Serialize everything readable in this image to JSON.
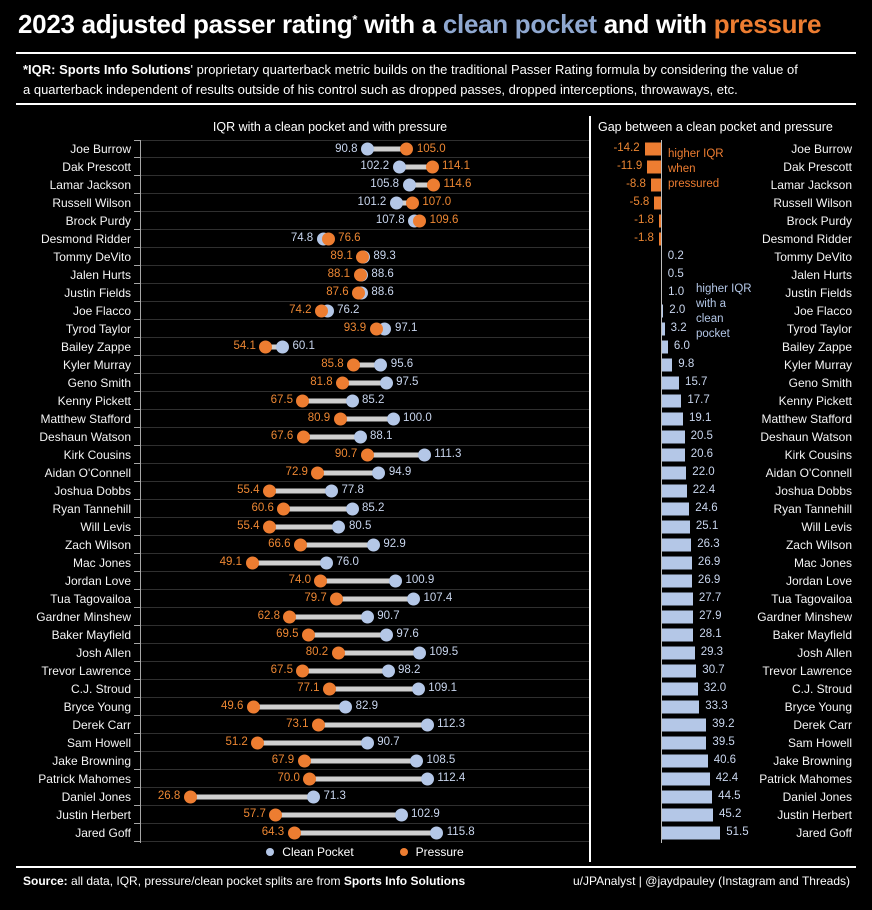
{
  "header": {
    "title_main": "2023 adjusted passer rating",
    "title_asterisk": "*",
    "title_mid": " with a ",
    "title_clean": "clean pocket",
    "title_and": " and with ",
    "title_pressure": "pressure",
    "subtitle_bold": "*IQR: Sports Info Solutions",
    "subtitle_line1_rest": "' proprietary quarterback metric builds on the traditional Passer Rating formula by considering the value of",
    "subtitle_line2": "a quarterback independent of results outside of his control such as dropped passes, dropped interceptions, throwaways, etc."
  },
  "left_panel": {
    "title": "IQR with a clean pocket and with pressure"
  },
  "right_panel": {
    "title": "Gap between a clean pocket  and pressure",
    "annotation_pressure": "higher IQR\nwhen\npressured",
    "annotation_clean": "higher IQR\nwith a\nclean\npocket"
  },
  "legend": {
    "clean": "Clean Pocket",
    "pressure": "Pressure"
  },
  "footer": {
    "source_bold": "Source:",
    "source_mid": " all data, IQR, pressure/clean pocket splits are from ",
    "source_bold2": "Sports Info Solutions",
    "credit": "u/JPAnalyst  |  @jaydpauley (Instagram and Threads)"
  },
  "colors": {
    "background": "#000000",
    "clean_blue": "#B4C7E7",
    "pressure_orange": "#ED7D31",
    "title_blue": "#8FA8D0",
    "connector_gray": "#CFCFCF",
    "clean_label": "#C9D6EE",
    "pressure_label": "#ED8733"
  },
  "chart_data": {
    "type": "dumbbell+bar",
    "left_chart": {
      "type": "dumbbell",
      "title": "IQR with a clean pocket and with pressure",
      "series": [
        "Clean Pocket",
        "Pressure"
      ],
      "xlim": [
        0,
        140
      ],
      "grid": "row-dividers"
    },
    "right_chart": {
      "type": "bar",
      "title": "Gap between a clean pocket  and pressure",
      "value_definition": "clean pocket IQR minus pressure IQR",
      "negative_note": "higher IQR when pressured",
      "positive_note": "higher IQR with a clean pocket"
    },
    "players": [
      {
        "name": "Joe Burrow",
        "clean": 90.8,
        "pressure": 105.0,
        "gap": -14.2
      },
      {
        "name": "Dak Prescott",
        "clean": 102.2,
        "pressure": 114.1,
        "gap": -11.9
      },
      {
        "name": "Lamar Jackson",
        "clean": 105.8,
        "pressure": 114.6,
        "gap": -8.8
      },
      {
        "name": "Russell Wilson",
        "clean": 101.2,
        "pressure": 107.0,
        "gap": -5.8
      },
      {
        "name": "Brock Purdy",
        "clean": 107.8,
        "pressure": 109.6,
        "gap": -1.8
      },
      {
        "name": "Desmond Ridder",
        "clean": 74.8,
        "pressure": 76.6,
        "gap": -1.8
      },
      {
        "name": "Tommy DeVito",
        "clean": 89.3,
        "pressure": 89.1,
        "gap": 0.2
      },
      {
        "name": "Jalen Hurts",
        "clean": 88.6,
        "pressure": 88.1,
        "gap": 0.5
      },
      {
        "name": "Justin Fields",
        "clean": 88.6,
        "pressure": 87.6,
        "gap": 1.0
      },
      {
        "name": "Joe Flacco",
        "clean": 76.2,
        "pressure": 74.2,
        "gap": 2.0
      },
      {
        "name": "Tyrod Taylor",
        "clean": 97.1,
        "pressure": 93.9,
        "gap": 3.2
      },
      {
        "name": "Bailey Zappe",
        "clean": 60.1,
        "pressure": 54.1,
        "gap": 6.0
      },
      {
        "name": "Kyler Murray",
        "clean": 95.6,
        "pressure": 85.8,
        "gap": 9.8
      },
      {
        "name": "Geno Smith",
        "clean": 97.5,
        "pressure": 81.8,
        "gap": 15.7
      },
      {
        "name": "Kenny Pickett",
        "clean": 85.2,
        "pressure": 67.5,
        "gap": 17.7
      },
      {
        "name": "Matthew Stafford",
        "clean": 100.0,
        "pressure": 80.9,
        "gap": 19.1
      },
      {
        "name": "Deshaun Watson",
        "clean": 88.1,
        "pressure": 67.6,
        "gap": 20.5
      },
      {
        "name": "Kirk Cousins",
        "clean": 111.3,
        "pressure": 90.7,
        "gap": 20.6
      },
      {
        "name": "Aidan O'Connell",
        "clean": 94.9,
        "pressure": 72.9,
        "gap": 22.0
      },
      {
        "name": "Joshua Dobbs",
        "clean": 77.8,
        "pressure": 55.4,
        "gap": 22.4
      },
      {
        "name": "Ryan Tannehill",
        "clean": 85.2,
        "pressure": 60.6,
        "gap": 24.6
      },
      {
        "name": "Will Levis",
        "clean": 80.5,
        "pressure": 55.4,
        "gap": 25.1
      },
      {
        "name": "Zach Wilson",
        "clean": 92.9,
        "pressure": 66.6,
        "gap": 26.3
      },
      {
        "name": "Mac Jones",
        "clean": 76.0,
        "pressure": 49.1,
        "gap": 26.9
      },
      {
        "name": "Jordan Love",
        "clean": 100.9,
        "pressure": 74.0,
        "gap": 26.9
      },
      {
        "name": "Tua Tagovailoa",
        "clean": 107.4,
        "pressure": 79.7,
        "gap": 27.7
      },
      {
        "name": "Gardner Minshew",
        "clean": 90.7,
        "pressure": 62.8,
        "gap": 27.9
      },
      {
        "name": "Baker Mayfield",
        "clean": 97.6,
        "pressure": 69.5,
        "gap": 28.1
      },
      {
        "name": "Josh Allen",
        "clean": 109.5,
        "pressure": 80.2,
        "gap": 29.3
      },
      {
        "name": "Trevor Lawrence",
        "clean": 98.2,
        "pressure": 67.5,
        "gap": 30.7
      },
      {
        "name": "C.J. Stroud",
        "clean": 109.1,
        "pressure": 77.1,
        "gap": 32.0
      },
      {
        "name": "Bryce Young",
        "clean": 82.9,
        "pressure": 49.6,
        "gap": 33.3
      },
      {
        "name": "Derek Carr",
        "clean": 112.3,
        "pressure": 73.1,
        "gap": 39.2
      },
      {
        "name": "Sam Howell",
        "clean": 90.7,
        "pressure": 51.2,
        "gap": 39.5
      },
      {
        "name": "Jake Browning",
        "clean": 108.5,
        "pressure": 67.9,
        "gap": 40.6
      },
      {
        "name": "Patrick Mahomes",
        "clean": 112.4,
        "pressure": 70.0,
        "gap": 42.4
      },
      {
        "name": "Daniel Jones",
        "clean": 71.3,
        "pressure": 26.8,
        "gap": 44.5
      },
      {
        "name": "Justin Herbert",
        "clean": 102.9,
        "pressure": 57.7,
        "gap": 45.2
      },
      {
        "name": "Jared Goff",
        "clean": 115.8,
        "pressure": 64.3,
        "gap": 51.5
      }
    ]
  }
}
